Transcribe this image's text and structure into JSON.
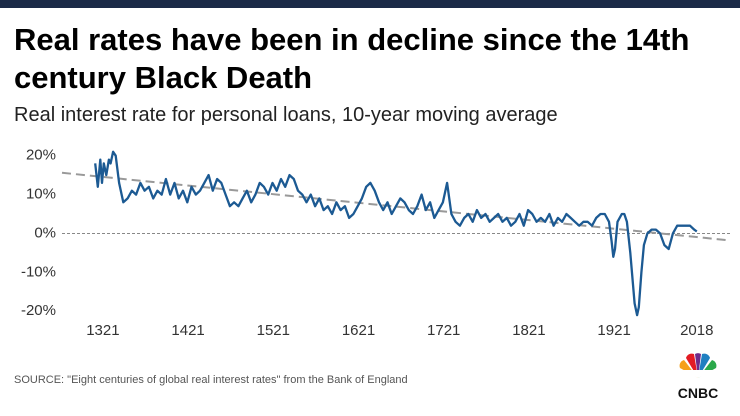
{
  "chart_data": {
    "type": "line",
    "title": [
      "Real rates have been in decline since the 14th",
      "century Black Death"
    ],
    "subtitle": "Real interest rate for personal loans, 10-year moving average",
    "source": "SOURCE: \"Eight centuries of global real interest rates\" from the Bank of England",
    "logo": "CNBC",
    "color": "#1c5a93",
    "xlim": [
      1273,
      2057
    ],
    "ylim": [
      -22,
      23
    ],
    "xticks": [
      1321,
      1421,
      1521,
      1621,
      1721,
      1821,
      1921,
      2018
    ],
    "yticks": [
      {
        "value": -20,
        "label": "-20%"
      },
      {
        "value": -10,
        "label": "-10%"
      },
      {
        "value": 0,
        "label": "0%"
      },
      {
        "value": 10,
        "label": "10%"
      },
      {
        "value": 20,
        "label": "20%"
      }
    ],
    "reference_line": 0,
    "trend": {
      "x": [
        1273,
        2057
      ],
      "values": [
        15.6,
        -1.8
      ]
    },
    "x": [
      1312,
      1315,
      1318,
      1320,
      1322,
      1325,
      1328,
      1330,
      1333,
      1336,
      1340,
      1345,
      1350,
      1355,
      1360,
      1365,
      1370,
      1375,
      1380,
      1385,
      1390,
      1395,
      1400,
      1405,
      1410,
      1415,
      1420,
      1425,
      1430,
      1435,
      1440,
      1445,
      1450,
      1455,
      1460,
      1465,
      1470,
      1475,
      1480,
      1485,
      1490,
      1495,
      1500,
      1505,
      1510,
      1515,
      1520,
      1525,
      1530,
      1535,
      1540,
      1545,
      1550,
      1555,
      1560,
      1565,
      1570,
      1575,
      1580,
      1585,
      1590,
      1595,
      1600,
      1605,
      1610,
      1615,
      1620,
      1625,
      1630,
      1635,
      1640,
      1645,
      1650,
      1655,
      1660,
      1665,
      1670,
      1675,
      1680,
      1685,
      1690,
      1695,
      1700,
      1705,
      1710,
      1715,
      1720,
      1725,
      1730,
      1735,
      1740,
      1745,
      1750,
      1755,
      1760,
      1765,
      1770,
      1775,
      1780,
      1785,
      1790,
      1795,
      1800,
      1805,
      1810,
      1815,
      1820,
      1825,
      1830,
      1835,
      1840,
      1845,
      1850,
      1855,
      1860,
      1865,
      1870,
      1875,
      1880,
      1885,
      1890,
      1895,
      1900,
      1905,
      1910,
      1915,
      1918,
      1920,
      1922,
      1925,
      1930,
      1933,
      1936,
      1940,
      1945,
      1948,
      1950,
      1953,
      1956,
      1960,
      1965,
      1970,
      1975,
      1980,
      1985,
      1990,
      1995,
      2000,
      2005,
      2010,
      2015,
      2018
    ],
    "values": [
      18,
      12,
      19,
      13,
      18,
      15,
      19,
      18,
      21,
      20,
      13,
      8,
      9,
      11,
      10,
      13,
      11,
      12,
      9,
      11,
      10,
      14,
      10,
      13,
      9,
      11,
      8,
      12,
      10,
      11,
      13,
      15,
      11,
      14,
      13,
      10,
      7,
      8,
      7,
      9,
      11,
      8,
      10,
      13,
      12,
      10,
      13,
      11,
      14,
      12,
      15,
      14,
      11,
      10,
      8,
      10,
      7,
      9,
      6,
      7,
      5,
      8,
      6,
      7,
      4,
      5,
      7,
      9,
      12,
      13,
      11,
      8,
      6,
      8,
      5,
      7,
      9,
      8,
      6,
      5,
      7,
      10,
      6,
      8,
      4,
      6,
      8,
      13,
      5,
      3,
      2,
      4,
      5,
      3,
      6,
      4,
      5,
      3,
      4,
      5,
      3,
      4,
      2,
      3,
      5,
      2,
      6,
      5,
      3,
      4,
      3,
      5,
      2,
      4,
      3,
      5,
      4,
      3,
      2,
      3,
      3,
      2,
      4,
      5,
      5,
      3,
      -2,
      -6,
      -4,
      3,
      5,
      5,
      3,
      -5,
      -18,
      -21,
      -19,
      -10,
      -3,
      0,
      1,
      1,
      0,
      -3,
      -4,
      0,
      2,
      2,
      2,
      2,
      1,
      0.5
    ]
  }
}
